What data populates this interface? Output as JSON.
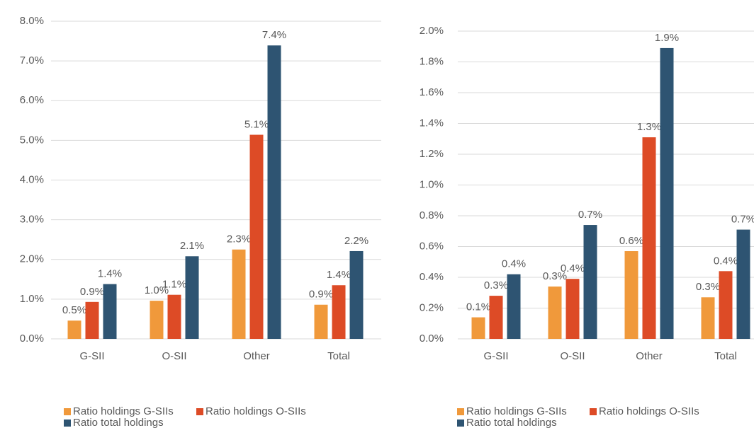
{
  "chart_data": [
    {
      "type": "bar",
      "categories": [
        "G-SII",
        "O-SII",
        "Other",
        "Total"
      ],
      "series": [
        {
          "name": "Ratio holdings G-SIIs",
          "color": "#f0993b",
          "values": [
            0.46,
            0.96,
            2.25,
            0.86
          ],
          "value_labels": [
            "0.5%",
            "1.0%",
            "2.3%",
            "0.9%"
          ]
        },
        {
          "name": "Ratio holdings O-SIIs",
          "color": "#dd4b26",
          "values": [
            0.93,
            1.11,
            5.14,
            1.35
          ],
          "value_labels": [
            "0.9%",
            "1.1%",
            "5.1%",
            "1.4%"
          ]
        },
        {
          "name": "Ratio total holdings",
          "color": "#2e5472",
          "values": [
            1.38,
            2.08,
            7.39,
            2.21
          ],
          "value_labels": [
            "1.4%",
            "2.1%",
            "7.4%",
            "2.2%"
          ]
        }
      ],
      "ylim": [
        0,
        8
      ],
      "yticks": [
        {
          "value": 0,
          "label": "0.0%"
        },
        {
          "value": 1,
          "label": "1.0%"
        },
        {
          "value": 2,
          "label": "2.0%"
        },
        {
          "value": 3,
          "label": "3.0%"
        },
        {
          "value": 4,
          "label": "4.0%"
        },
        {
          "value": 5,
          "label": "5.0%"
        },
        {
          "value": 6,
          "label": "6.0%"
        },
        {
          "value": 7,
          "label": "7.0%"
        },
        {
          "value": 8,
          "label": "8.0%"
        }
      ],
      "grid": true
    },
    {
      "type": "bar",
      "categories": [
        "G-SII",
        "O-SII",
        "Other",
        "Total"
      ],
      "series": [
        {
          "name": "Ratio holdings G-SIIs",
          "color": "#f0993b",
          "values": [
            0.14,
            0.34,
            0.57,
            0.27
          ],
          "value_labels": [
            "0.1%",
            "0.3%",
            "0.6%",
            "0.3%"
          ]
        },
        {
          "name": "Ratio holdings O-SIIs",
          "color": "#dd4b26",
          "values": [
            0.28,
            0.39,
            1.31,
            0.44
          ],
          "value_labels": [
            "0.3%",
            "0.4%",
            "1.3%",
            "0.4%"
          ]
        },
        {
          "name": "Ratio total holdings",
          "color": "#2e5472",
          "values": [
            0.42,
            0.74,
            1.89,
            0.71
          ],
          "value_labels": [
            "0.4%",
            "0.7%",
            "1.9%",
            "0.7%"
          ]
        }
      ],
      "ylim": [
        0,
        2
      ],
      "yticks": [
        {
          "value": 0,
          "label": "0.0%"
        },
        {
          "value": 0.2,
          "label": "0.2%"
        },
        {
          "value": 0.4,
          "label": "0.4%"
        },
        {
          "value": 0.6,
          "label": "0.6%"
        },
        {
          "value": 0.8,
          "label": "0.8%"
        },
        {
          "value": 1.0,
          "label": "1.0%"
        },
        {
          "value": 1.2,
          "label": "1.2%"
        },
        {
          "value": 1.4,
          "label": "1.4%"
        },
        {
          "value": 1.6,
          "label": "1.6%"
        },
        {
          "value": 1.8,
          "label": "1.8%"
        },
        {
          "value": 2.0,
          "label": "2.0%"
        }
      ],
      "grid": true
    }
  ]
}
